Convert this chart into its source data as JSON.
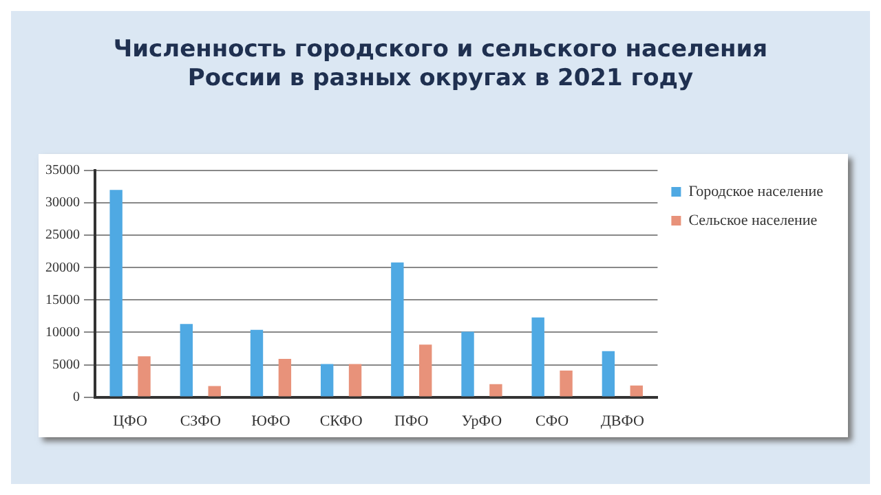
{
  "chart_data": {
    "type": "bar",
    "title": "Численность городского и сельского населения России в разных округах в 2021 году",
    "categories": [
      "ЦФО",
      "СЗФО",
      "ЮФО",
      "СКФО",
      "ПФО",
      "УрФО",
      "СФО",
      "ДВФО"
    ],
    "series": [
      {
        "name": "Городское население",
        "color": "#4fa9e3",
        "values": [
          32000,
          11300,
          10400,
          5100,
          20800,
          10100,
          12300,
          7100
        ]
      },
      {
        "name": "Сельское население",
        "color": "#e8927a",
        "values": [
          6300,
          1700,
          5900,
          5100,
          8100,
          2000,
          4100,
          1800
        ]
      }
    ],
    "ylim": [
      0,
      35000
    ],
    "yticks": [
      0,
      5000,
      10000,
      15000,
      20000,
      25000,
      30000,
      35000
    ],
    "grid": "y",
    "legend": "right"
  }
}
